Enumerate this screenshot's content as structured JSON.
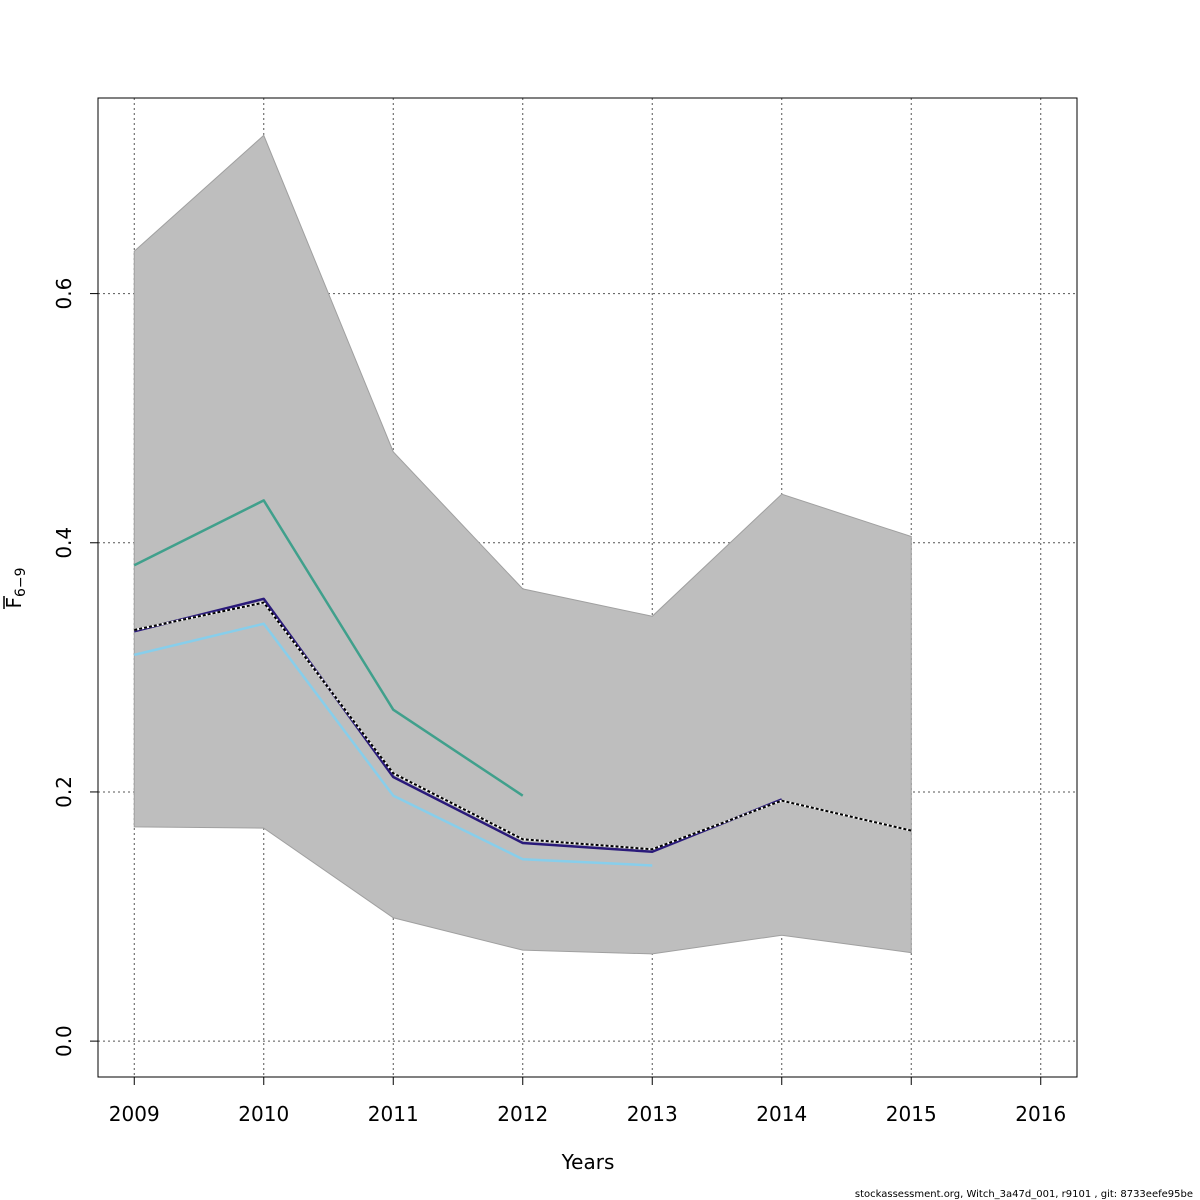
{
  "chart_data": {
    "type": "line",
    "title": "",
    "xlabel": "Years",
    "ylabel_main": "F",
    "ylabel_sub": "6−9",
    "xlim": [
      2008.72,
      2016.28
    ],
    "ylim": [
      -0.0288,
      0.757
    ],
    "x_ticks": [
      2009,
      2010,
      2011,
      2012,
      2013,
      2014,
      2015,
      2016
    ],
    "x_tick_labels": [
      "2009",
      "2010",
      "2011",
      "2012",
      "2013",
      "2014",
      "2015",
      "2016"
    ],
    "y_ticks": [
      0.0,
      0.2,
      0.4,
      0.6
    ],
    "y_tick_labels": [
      "0.0",
      "0.2",
      "0.4",
      "0.6"
    ],
    "grid": true,
    "band": {
      "x": [
        2009,
        2010,
        2011,
        2012,
        2013,
        2014,
        2015
      ],
      "lower": [
        0.172,
        0.171,
        0.099,
        0.073,
        0.07,
        0.085,
        0.071
      ],
      "upper": [
        0.634,
        0.727,
        0.473,
        0.363,
        0.341,
        0.439,
        0.405
      ],
      "color": "#bebebe"
    },
    "series": [
      {
        "color": "#40a08c",
        "dashed": false,
        "x": [
          2009,
          2010,
          2011,
          2012
        ],
        "values": [
          0.382,
          0.434,
          0.266,
          0.197
        ]
      },
      {
        "color": "#87ceeb",
        "dashed": false,
        "x": [
          2009,
          2010,
          2011,
          2012,
          2013
        ],
        "values": [
          0.31,
          0.335,
          0.197,
          0.146,
          0.141
        ]
      },
      {
        "color": "#2a1a7a",
        "dashed": false,
        "x": [
          2009,
          2010,
          2011,
          2012,
          2013,
          2014
        ],
        "values": [
          0.329,
          0.355,
          0.212,
          0.159,
          0.152,
          0.194
        ]
      },
      {
        "color": "#000000",
        "dashed": true,
        "x": [
          2009,
          2010,
          2011,
          2012,
          2013,
          2014,
          2015
        ],
        "values": [
          0.33,
          0.352,
          0.215,
          0.162,
          0.154,
          0.193,
          0.169
        ]
      }
    ]
  },
  "footnote": "stockassessment.org, Witch_3a47d_001, r9101 , git: 8733eefe95be"
}
